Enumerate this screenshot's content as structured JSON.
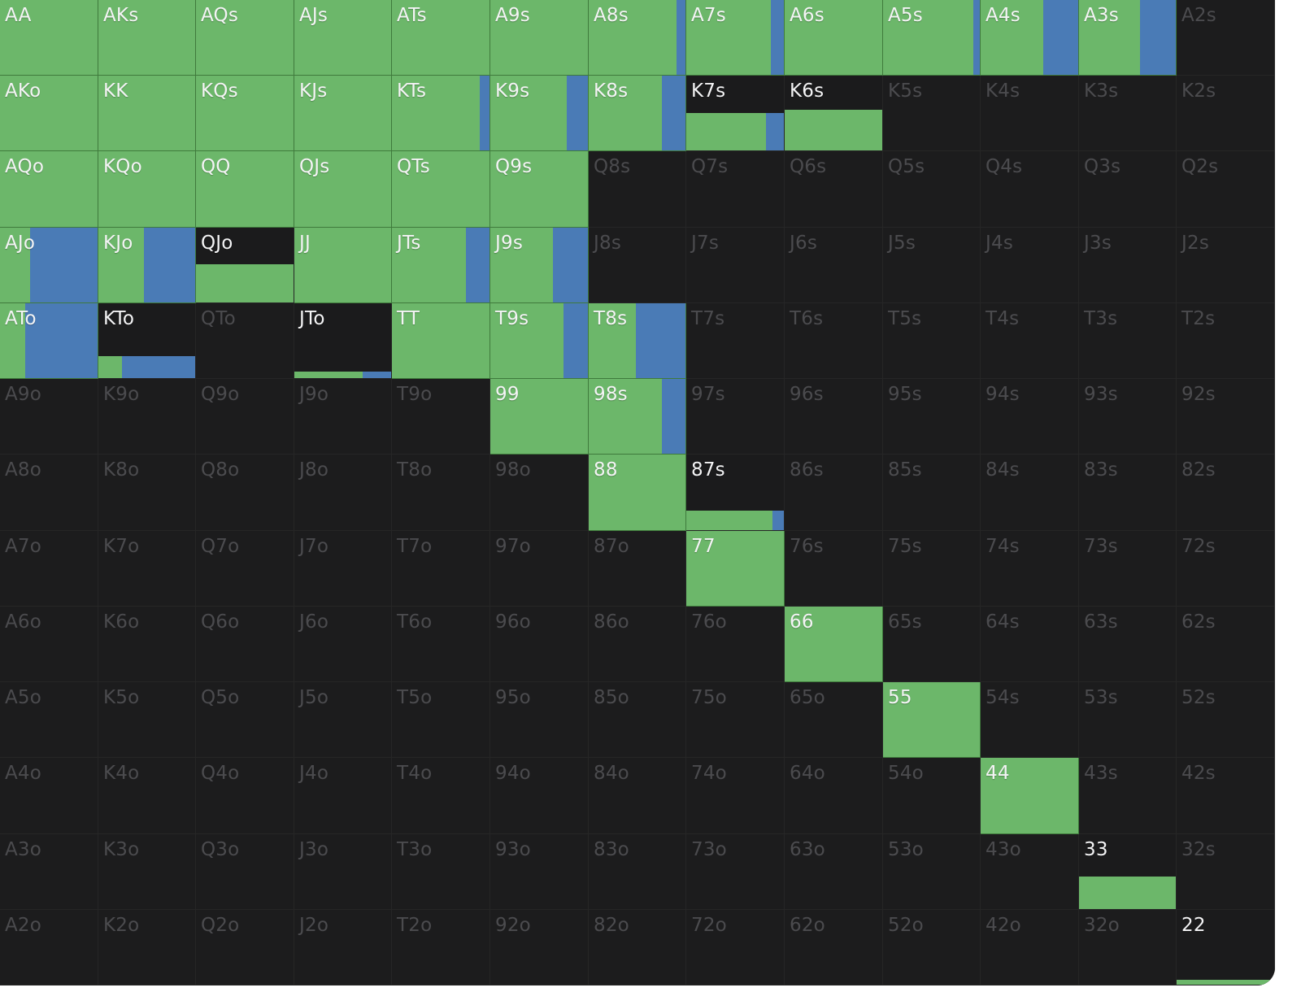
{
  "ranks": [
    "A",
    "K",
    "Q",
    "J",
    "T",
    "9",
    "8",
    "7",
    "6",
    "5",
    "4",
    "3",
    "2"
  ],
  "colors": {
    "background": "#1c1c1d",
    "action_green": "#6cb76a",
    "action_blue": "#4a7bb6",
    "label_active": "#f4f4f5",
    "label_inactive": "#4b4b4e"
  },
  "hand_frequencies": {
    "AA": {
      "green": 1.0,
      "blue": 0.0
    },
    "AKs": {
      "green": 1.0,
      "blue": 0.0
    },
    "AQs": {
      "green": 1.0,
      "blue": 0.0
    },
    "AJs": {
      "green": 1.0,
      "blue": 0.0
    },
    "ATs": {
      "green": 1.0,
      "blue": 0.0
    },
    "A9s": {
      "green": 1.0,
      "blue": 0.0
    },
    "A8s": {
      "green": 0.91,
      "blue": 0.09
    },
    "A7s": {
      "green": 0.87,
      "blue": 0.13
    },
    "A6s": {
      "green": 1.0,
      "blue": 0.0
    },
    "A5s": {
      "green": 0.93,
      "blue": 0.07
    },
    "A4s": {
      "green": 0.64,
      "blue": 0.36
    },
    "A3s": {
      "green": 0.63,
      "blue": 0.37
    },
    "AKo": {
      "green": 1.0,
      "blue": 0.0
    },
    "KK": {
      "green": 1.0,
      "blue": 0.0
    },
    "KQs": {
      "green": 1.0,
      "blue": 0.0
    },
    "KJs": {
      "green": 1.0,
      "blue": 0.0
    },
    "KTs": {
      "green": 0.9,
      "blue": 0.1
    },
    "K9s": {
      "green": 0.78,
      "blue": 0.22
    },
    "K8s": {
      "green": 0.76,
      "blue": 0.24
    },
    "K7s": {
      "green": 0.41,
      "blue": 0.09
    },
    "K6s": {
      "green": 0.54,
      "blue": 0.0
    },
    "AQo": {
      "green": 1.0,
      "blue": 0.0
    },
    "KQo": {
      "green": 1.0,
      "blue": 0.0
    },
    "QQ": {
      "green": 1.0,
      "blue": 0.0
    },
    "QJs": {
      "green": 1.0,
      "blue": 0.0
    },
    "QTs": {
      "green": 1.0,
      "blue": 0.0
    },
    "Q9s": {
      "green": 1.0,
      "blue": 0.0
    },
    "AJo": {
      "green": 0.31,
      "blue": 0.69
    },
    "KJo": {
      "green": 0.47,
      "blue": 0.53
    },
    "QJo": {
      "green": 0.51,
      "blue": 0.0
    },
    "JJ": {
      "green": 1.0,
      "blue": 0.0
    },
    "JTs": {
      "green": 0.76,
      "blue": 0.24
    },
    "J9s": {
      "green": 0.64,
      "blue": 0.36
    },
    "ATo": {
      "green": 0.26,
      "blue": 0.74
    },
    "KTo": {
      "green": 0.24,
      "blue": 0.76,
      "height": 0.29
    },
    "QTo": {
      "green": 0.0,
      "blue": 0.0
    },
    "JTo": {
      "green": 0.71,
      "blue": 0.29,
      "height": 0.09
    },
    "TT": {
      "green": 1.0,
      "blue": 0.0
    },
    "T9s": {
      "green": 0.75,
      "blue": 0.25
    },
    "T8s": {
      "green": 0.49,
      "blue": 0.51
    },
    "99": {
      "green": 1.0,
      "blue": 0.0
    },
    "98s": {
      "green": 0.76,
      "blue": 0.24
    },
    "88": {
      "green": 1.0,
      "blue": 0.0
    },
    "87s": {
      "green": 0.88,
      "blue": 0.12,
      "height": 0.26
    },
    "77": {
      "green": 1.0,
      "blue": 0.0
    },
    "66": {
      "green": 1.0,
      "blue": 0.0
    },
    "55": {
      "green": 1.0,
      "blue": 0.0
    },
    "44": {
      "green": 1.0,
      "blue": 0.0
    },
    "33": {
      "green": 0.43,
      "blue": 0.0
    },
    "22": {
      "green": 0.06,
      "blue": 0.0
    }
  }
}
